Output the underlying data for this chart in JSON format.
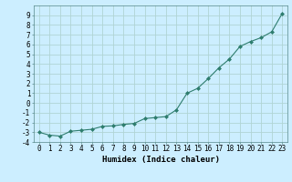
{
  "x": [
    0,
    1,
    2,
    3,
    4,
    5,
    6,
    7,
    8,
    9,
    10,
    11,
    12,
    13,
    14,
    15,
    16,
    17,
    18,
    19,
    20,
    21,
    22,
    23
  ],
  "y": [
    -3.0,
    -3.3,
    -3.4,
    -2.9,
    -2.8,
    -2.7,
    -2.4,
    -2.35,
    -2.2,
    -2.1,
    -1.6,
    -1.5,
    -1.4,
    -0.7,
    1.0,
    1.5,
    2.5,
    3.6,
    4.5,
    5.8,
    6.3,
    6.7,
    7.3,
    9.2
  ],
  "line_color": "#2e7d6e",
  "marker": "D",
  "marker_size": 2.0,
  "background_color": "#cceeff",
  "grid_color": "#b0d4d4",
  "xlabel": "Humidex (Indice chaleur)",
  "xlim": [
    -0.5,
    23.5
  ],
  "ylim": [
    -4,
    10
  ],
  "yticks": [
    -4,
    -3,
    -2,
    -1,
    0,
    1,
    2,
    3,
    4,
    5,
    6,
    7,
    8,
    9
  ],
  "xticks": [
    0,
    1,
    2,
    3,
    4,
    5,
    6,
    7,
    8,
    9,
    10,
    11,
    12,
    13,
    14,
    15,
    16,
    17,
    18,
    19,
    20,
    21,
    22,
    23
  ],
  "xlabel_fontsize": 6.5,
  "tick_fontsize": 5.5
}
